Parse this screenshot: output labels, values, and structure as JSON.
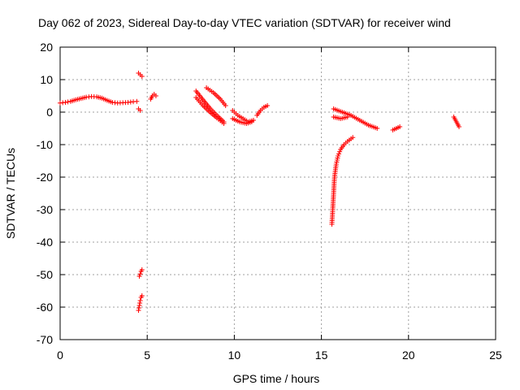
{
  "chart_data": {
    "type": "scatter",
    "title": "Day 062 of 2023, Sidereal Day-to-day VTEC variation (SDTVAR) for receiver wind",
    "xlabel": "GPS time / hours",
    "ylabel": "SDTVAR / TECUs",
    "xlim": [
      0,
      25
    ],
    "ylim": [
      -70,
      20
    ],
    "x_ticks": [
      "0",
      "5",
      "10",
      "15",
      "20",
      "25"
    ],
    "y_ticks": [
      "20",
      "10",
      "0",
      "-10",
      "-20",
      "-30",
      "-40",
      "-50",
      "-60",
      "-70"
    ],
    "grid": true,
    "marker": "+",
    "color": "#ff0000",
    "segments": [
      {
        "name": "early-arc",
        "x": [
          0.0,
          0.3,
          0.6,
          0.9,
          1.2,
          1.5,
          1.8,
          2.1,
          2.4,
          2.7,
          3.0,
          3.3,
          3.6,
          3.9,
          4.2,
          4.4
        ],
        "y": [
          2.8,
          3.0,
          3.3,
          3.8,
          4.2,
          4.6,
          4.8,
          4.7,
          4.3,
          3.6,
          3.0,
          2.8,
          2.9,
          3.0,
          3.2,
          3.3
        ]
      },
      {
        "name": "spike-high",
        "x": [
          4.5,
          4.6,
          4.7
        ],
        "y": [
          12.0,
          11.5,
          11.0
        ]
      },
      {
        "name": "spike-low",
        "x": [
          4.5,
          4.6
        ],
        "y": [
          1.0,
          0.5
        ]
      },
      {
        "name": "drop-1",
        "x": [
          4.55,
          4.6,
          4.65,
          4.7
        ],
        "y": [
          -50.5,
          -49.8,
          -49.0,
          -48.5
        ]
      },
      {
        "name": "drop-2",
        "x": [
          4.5,
          4.55,
          4.6,
          4.65,
          4.7
        ],
        "y": [
          -61.0,
          -59.5,
          -58.0,
          -57.0,
          -56.5
        ]
      },
      {
        "name": "small-5",
        "x": [
          5.2,
          5.3,
          5.4,
          5.5
        ],
        "y": [
          4.0,
          5.0,
          5.5,
          5.0
        ]
      },
      {
        "name": "band-a",
        "x": [
          7.8,
          8.2,
          8.6,
          9.0,
          9.4
        ],
        "y": [
          6.5,
          3.8,
          1.2,
          -1.0,
          -3.0
        ]
      },
      {
        "name": "band-b",
        "x": [
          7.8,
          8.2,
          8.6,
          9.0,
          9.4
        ],
        "y": [
          4.5,
          2.0,
          0.0,
          -1.8,
          -3.5
        ]
      },
      {
        "name": "band-c",
        "x": [
          8.4,
          8.8,
          9.2,
          9.5
        ],
        "y": [
          7.5,
          6.0,
          4.0,
          2.0
        ]
      },
      {
        "name": "mid-1",
        "x": [
          9.9,
          10.2,
          10.5,
          10.8,
          11.1
        ],
        "y": [
          0.5,
          -1.0,
          -2.0,
          -3.0,
          -2.5
        ]
      },
      {
        "name": "mid-2",
        "x": [
          9.9,
          10.3,
          10.7,
          11.0
        ],
        "y": [
          -2.0,
          -3.0,
          -3.5,
          -3.0
        ]
      },
      {
        "name": "mid-3",
        "x": [
          11.3,
          11.5,
          11.7,
          11.9
        ],
        "y": [
          -1.0,
          0.5,
          1.5,
          2.0
        ]
      },
      {
        "name": "late-a",
        "x": [
          15.7,
          16.2,
          16.7,
          17.2,
          17.7,
          18.2
        ],
        "y": [
          1.0,
          0.0,
          -1.0,
          -2.5,
          -4.0,
          -5.0
        ]
      },
      {
        "name": "late-b",
        "x": [
          15.7,
          16.1,
          16.5
        ],
        "y": [
          -1.5,
          -2.0,
          -1.5
        ]
      },
      {
        "name": "curve",
        "x": [
          15.6,
          15.65,
          15.7,
          15.75,
          15.85,
          15.95,
          16.1,
          16.3,
          16.5,
          16.7,
          16.8
        ],
        "y": [
          -34.5,
          -30.0,
          -25.0,
          -20.0,
          -16.0,
          -13.5,
          -11.5,
          -10.0,
          -9.0,
          -8.2,
          -7.8
        ]
      },
      {
        "name": "p19",
        "x": [
          19.1,
          19.3,
          19.5
        ],
        "y": [
          -5.5,
          -5.0,
          -4.5
        ]
      },
      {
        "name": "p23",
        "x": [
          22.6,
          22.7,
          22.8,
          22.9
        ],
        "y": [
          -1.5,
          -2.5,
          -3.5,
          -4.5
        ]
      }
    ]
  }
}
